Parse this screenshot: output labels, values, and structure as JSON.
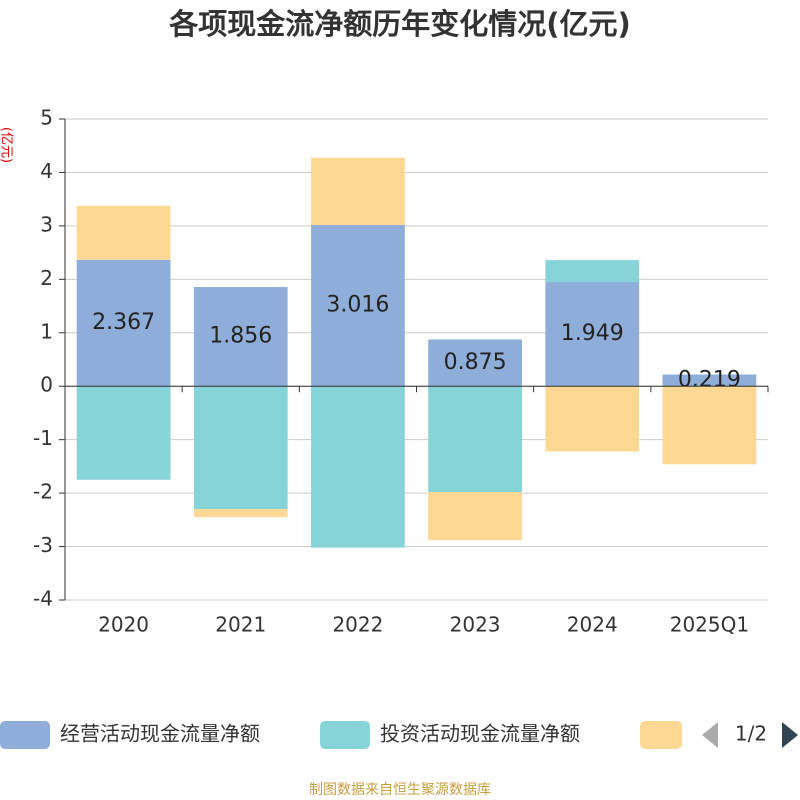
{
  "chart_data": {
    "type": "bar",
    "stacked": true,
    "title": "各项现金流净额历年变化情况(亿元)",
    "y_label": "(亿元)",
    "categories": [
      "2020",
      "2021",
      "2022",
      "2023",
      "2024",
      "2025Q1"
    ],
    "series": [
      {
        "name": "经营活动现金流量净额",
        "color": "#8eaed9",
        "values": [
          2.367,
          1.856,
          3.016,
          0.875,
          1.949,
          0.219
        ],
        "show_labels": true
      },
      {
        "name": "投资活动现金流量净额",
        "color": "#86d4d8",
        "values": [
          -1.75,
          -2.3,
          -3.02,
          -1.98,
          0.41,
          0
        ]
      },
      {
        "color": "#fdd895",
        "values": [
          1.01,
          -0.15,
          1.26,
          -0.9,
          -1.22,
          -1.46
        ]
      }
    ],
    "ylim": [
      -4,
      5
    ],
    "yticks": [
      -4,
      -3,
      -2,
      -1,
      0,
      1,
      2,
      3,
      4,
      5
    ],
    "grid": true,
    "legend_page": "1/2",
    "source": "制图数据来自恒生聚源数据库"
  }
}
